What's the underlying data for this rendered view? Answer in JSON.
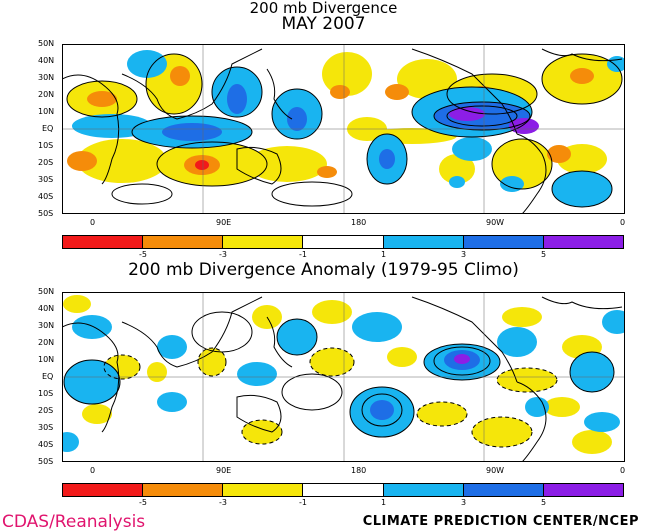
{
  "titles": {
    "top_line1": "200 mb Divergence",
    "top_line2": "MAY 2007",
    "bottom": "200 mb Divergence Anomaly (1979-95 Climo)"
  },
  "lat_labels": [
    "50N",
    "40N",
    "30N",
    "20N",
    "10N",
    "EQ",
    "10S",
    "20S",
    "30S",
    "40S",
    "50S"
  ],
  "lon_labels": [
    "0",
    "90E",
    "180",
    "90W",
    "0"
  ],
  "legend": {
    "colors": [
      "#f21a1a",
      "#f58c0a",
      "#f5e60a",
      "#ffffff",
      "#19b4f0",
      "#1e6ee6",
      "#8c1ee6"
    ],
    "tick_labels": [
      "-5",
      "-3",
      "-1",
      "1",
      "3",
      "5"
    ]
  },
  "map_colors": {
    "strong_convergence": "#f21a1a",
    "convergence": "#f58c0a",
    "weak_convergence": "#f5e60a",
    "weak_divergence": "#19b4f0",
    "divergence": "#1e6ee6",
    "strong_divergence": "#8c1ee6"
  },
  "credits": {
    "left": "CDAS/Reanalysis",
    "right": "CLIMATE PREDICTION CENTER/NCEP"
  }
}
